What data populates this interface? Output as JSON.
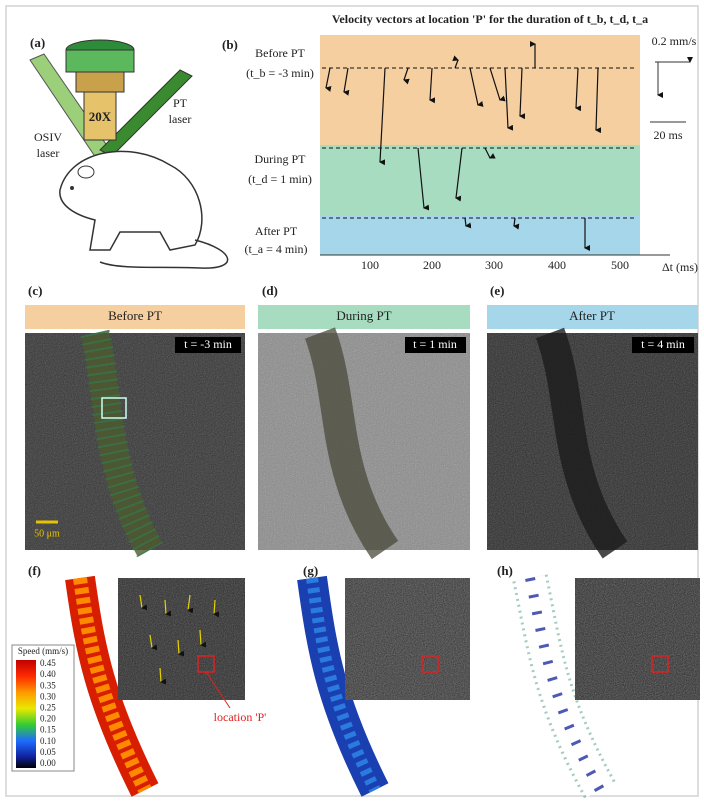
{
  "panels": {
    "a": {
      "label": "(a)",
      "objective": "20X",
      "osiv_laser": [
        "OSIV",
        "laser"
      ],
      "pt_laser": [
        "PT",
        "laser"
      ]
    },
    "b": {
      "label": "(b)",
      "title": "Velocity vectors at location 'P' for the duration of t_b, t_d, t_a",
      "phases": [
        {
          "name": "Before PT",
          "time": "(t_b = -3 min)"
        },
        {
          "name": "During PT",
          "time": "(t_d = 1 min)"
        },
        {
          "name": "After PT",
          "time": "(t_a = 4 min)"
        }
      ],
      "velocity_scale": "0.2 mm/s",
      "time_scale": "20 ms",
      "x_ticks": [
        "100",
        "200",
        "300",
        "400",
        "500"
      ],
      "x_label": "Δt (ms)"
    },
    "c": {
      "label": "(c)",
      "header": "Before PT",
      "time": "t = -3 min",
      "scale_bar": "50 μm"
    },
    "d": {
      "label": "(d)",
      "header": "During PT",
      "time": "t = 1 min"
    },
    "e": {
      "label": "(e)",
      "header": "After PT",
      "time": "t = 4 min"
    },
    "f": {
      "label": "(f)",
      "colorbar_title": "Speed (mm/s)",
      "colorbar_ticks": [
        "0.45",
        "0.40",
        "0.35",
        "0.30",
        "0.25",
        "0.20",
        "0.15",
        "0.10",
        "0.05",
        "0.00"
      ],
      "location": "location 'P'"
    },
    "g": {
      "label": "(g)"
    },
    "h": {
      "label": "(h)"
    }
  }
}
